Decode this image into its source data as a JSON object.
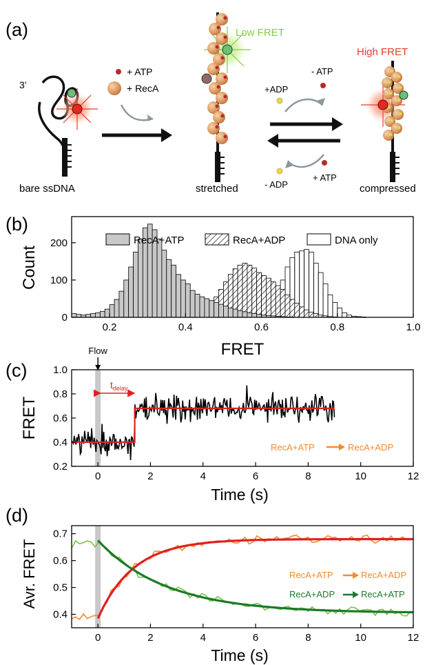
{
  "panel_a": {
    "label": "(a)",
    "end_label": "3’",
    "legend_atp": "+ ATP",
    "legend_reca": "+ RecA",
    "label_bare": "bare ssDNA",
    "label_stretched": "stretched",
    "label_compressed": "compressed",
    "low_fret": "Low FRET",
    "high_fret": "High FRET",
    "minus_atp": "- ATP",
    "plus_adp": "+ADP",
    "minus_adp": "- ADP",
    "plus_atp": "+ ATP",
    "colors": {
      "atp": "#b52a2a",
      "adp": "#e8d65a",
      "reca": "#e0a268",
      "low_fret": "#7fcf3a",
      "high_fret": "#e63b2e"
    }
  },
  "chart_data": [
    {
      "id": "b",
      "type": "bar",
      "panel_label": "(b)",
      "xlabel": "FRET",
      "ylabel": "Count",
      "xlim": [
        0.1,
        1.0
      ],
      "ylim": [
        0,
        270
      ],
      "xticks": [
        0.2,
        0.4,
        0.6,
        0.8,
        1.0
      ],
      "xtick_labels": [
        "0.2",
        "0.4",
        "0.6",
        "0.8",
        "1.0"
      ],
      "yticks": [
        0,
        100,
        200
      ],
      "ytick_labels": [
        "0",
        "100",
        "200"
      ],
      "bin_start": 0.1,
      "bin_width": 0.0125,
      "legend_position": "top",
      "series": [
        {
          "name": "RecA+ATP",
          "style": "gray",
          "color": "#c8c8c8",
          "values": [
            10,
            8,
            6,
            8,
            10,
            12,
            16,
            22,
            34,
            48,
            70,
            100,
            135,
            175,
            210,
            240,
            250,
            235,
            210,
            180,
            155,
            140,
            115,
            100,
            90,
            72,
            62,
            55,
            50,
            45,
            40,
            35,
            30,
            25,
            22,
            18,
            15,
            12,
            10,
            8,
            6,
            5,
            4,
            3,
            2,
            1,
            1,
            0,
            0,
            0,
            0,
            0,
            0,
            0,
            0,
            0,
            0,
            0,
            0,
            0,
            0,
            0,
            0,
            0,
            0,
            0,
            0,
            0,
            0,
            0,
            0,
            0
          ]
        },
        {
          "name": "RecA+ADP",
          "style": "hatched",
          "color": "#303030",
          "values": [
            0,
            0,
            0,
            0,
            0,
            0,
            0,
            0,
            0,
            0,
            0,
            0,
            0,
            0,
            0,
            0,
            0,
            0,
            2,
            4,
            6,
            8,
            10,
            12,
            14,
            16,
            20,
            24,
            30,
            40,
            55,
            75,
            95,
            115,
            130,
            140,
            145,
            140,
            132,
            120,
            112,
            105,
            95,
            85,
            75,
            60,
            48,
            38,
            28,
            20,
            14,
            10,
            6,
            4,
            2,
            1,
            0,
            0,
            0,
            0,
            0,
            0,
            0,
            0,
            0,
            0,
            0,
            0,
            0,
            0,
            0,
            0
          ]
        },
        {
          "name": "DNA only",
          "style": "open",
          "color": "#000000",
          "values": [
            0,
            0,
            0,
            0,
            0,
            0,
            0,
            0,
            0,
            0,
            0,
            0,
            0,
            0,
            0,
            0,
            0,
            0,
            0,
            0,
            0,
            0,
            0,
            0,
            0,
            0,
            0,
            0,
            0,
            0,
            0,
            0,
            0,
            0,
            0,
            0,
            0,
            0,
            2,
            4,
            8,
            15,
            30,
            60,
            100,
            135,
            160,
            175,
            178,
            182,
            175,
            145,
            120,
            90,
            60,
            40,
            25,
            12,
            6,
            3,
            2,
            1,
            0,
            0,
            0,
            0,
            0,
            0,
            0,
            0,
            0,
            0
          ]
        }
      ]
    },
    {
      "id": "c",
      "type": "line",
      "panel_label": "(c)",
      "xlabel": "Time (s)",
      "ylabel": "FRET",
      "xlim": [
        -1,
        12
      ],
      "ylim": [
        0.2,
        1.0
      ],
      "xticks": [
        0,
        2,
        4,
        6,
        8,
        10,
        12
      ],
      "xtick_labels": [
        "0",
        "2",
        "4",
        "6",
        "8",
        "10",
        "12"
      ],
      "yticks": [
        0.2,
        0.4,
        0.6,
        0.8,
        1.0
      ],
      "ytick_labels": [
        "0.2",
        "0.4",
        "0.6",
        "0.8",
        "1.0"
      ],
      "flow_label": "Flow",
      "flow_time": 0,
      "delay_label_t": "t",
      "delay_label_sub": "delay",
      "delay_range": [
        0,
        1.4
      ],
      "annotation_from": "RecA+ATP",
      "annotation_to": "RecA+ADP",
      "raw_trace": {
        "t_start": -1,
        "t_end": 9,
        "dt": 0.033,
        "level_before": 0.4,
        "level_after": 0.68,
        "noise_sd": 0.055,
        "color": "#000000"
      },
      "fit_step": {
        "x": [
          -1,
          1.4,
          1.4,
          9
        ],
        "y": [
          0.4,
          0.4,
          0.68,
          0.68
        ],
        "color": "#e02020"
      }
    },
    {
      "id": "d",
      "type": "line",
      "panel_label": "(d)",
      "xlabel": "Time (s)",
      "ylabel": "Avr. FRET",
      "xlim": [
        -1,
        12
      ],
      "ylim": [
        0.35,
        0.73
      ],
      "xticks": [
        0,
        2,
        4,
        6,
        8,
        10,
        12
      ],
      "xtick_labels": [
        "0",
        "2",
        "4",
        "6",
        "8",
        "10",
        "12"
      ],
      "yticks": [
        0.4,
        0.5,
        0.6,
        0.7
      ],
      "ytick_labels": [
        "0.4",
        "0.5",
        "0.6",
        "0.7"
      ],
      "flow_time": 0,
      "series": [
        {
          "name": "RecA+ATP → RecA+ADP",
          "label_from": "RecA+ATP",
          "label_to": "RecA+ADP",
          "data_color": "#f28a2e",
          "fit_color": "#e02020",
          "pre_level": 0.39,
          "start": 0.385,
          "end": 0.68,
          "tau": 1.35
        },
        {
          "name": "RecA+ADP → RecA+ATP",
          "label_from": "RecA+ADP",
          "label_to": "RecA+ATP",
          "data_color": "#7bc242",
          "fit_color": "#1a7a2a",
          "pre_level": 0.665,
          "start": 0.675,
          "end": 0.405,
          "tau": 2.6
        }
      ]
    }
  ]
}
